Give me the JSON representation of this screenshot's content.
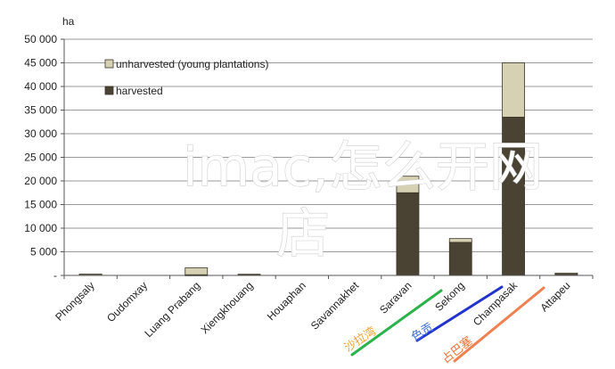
{
  "chart_data": {
    "type": "bar",
    "stacked": true,
    "ylabel": "ha",
    "ylim": [
      0,
      50000
    ],
    "yticks": [
      0,
      5000,
      10000,
      15000,
      20000,
      25000,
      30000,
      35000,
      40000,
      45000,
      50000
    ],
    "ytick_labels": [
      "-",
      "5 000",
      "10 000",
      "15 000",
      "20 000",
      "25 000",
      "30 000",
      "35 000",
      "40 000",
      "45 000",
      "50 000"
    ],
    "categories": [
      "Phongsaly",
      "Oudomxay",
      "Luang Prabang",
      "Xiengkhouang",
      "Houaphan",
      "Savannakhet",
      "Saravan",
      "Sekong",
      "Champasak",
      "Attapeu"
    ],
    "series": [
      {
        "name": "harvested",
        "color": "#4a4232",
        "values": [
          250,
          0,
          150,
          250,
          0,
          0,
          17500,
          7000,
          33500,
          450
        ]
      },
      {
        "name": "unharvested (young plantations)",
        "color": "#d6d1b2",
        "values": [
          50,
          0,
          1450,
          0,
          0,
          0,
          3500,
          800,
          11500,
          50
        ]
      }
    ],
    "legend": {
      "placement": "top-left",
      "order": [
        "unharvested (young plantations)",
        "harvested"
      ]
    }
  },
  "watermark": {
    "line1": "imac,怎么开网",
    "line2": "店"
  },
  "overlay_links": [
    {
      "text": "沙拉湾",
      "color": "#f0a030",
      "stroke": "#2bb24a"
    },
    {
      "text": "色贡",
      "color": "#3a6fe0",
      "stroke": "#2233cc"
    },
    {
      "text": "占巴塞",
      "color": "#f07030",
      "stroke": "#f08050"
    }
  ]
}
